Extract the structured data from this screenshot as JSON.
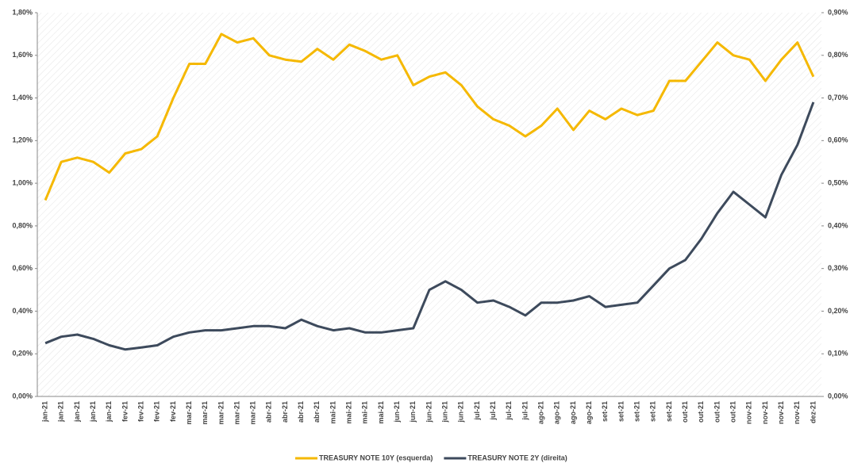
{
  "chart_data": {
    "type": "line",
    "categories": [
      "jan-21",
      "jan-21",
      "jan-21",
      "jan-21",
      "jan-21",
      "fev-21",
      "fev-21",
      "fev-21",
      "fev-21",
      "mar-21",
      "mar-21",
      "mar-21",
      "mar-21",
      "mar-21",
      "abr-21",
      "abr-21",
      "abr-21",
      "abr-21",
      "mai-21",
      "mai-21",
      "mai-21",
      "mai-21",
      "jun-21",
      "jun-21",
      "jun-21",
      "jun-21",
      "jun-21",
      "jul-21",
      "jul-21",
      "jul-21",
      "jul-21",
      "ago-21",
      "ago-21",
      "ago-21",
      "ago-21",
      "set-21",
      "set-21",
      "set-21",
      "set-21",
      "set-21",
      "out-21",
      "out-21",
      "out-21",
      "out-21",
      "nov-21",
      "nov-21",
      "nov-21",
      "nov-21",
      "dez-21"
    ],
    "series": [
      {
        "name": "TREASURY NOTE 10Y (esquerda)",
        "color": "#f5b800",
        "axis": "y",
        "values": [
          0.92,
          1.1,
          1.12,
          1.1,
          1.05,
          1.14,
          1.16,
          1.22,
          1.4,
          1.56,
          1.56,
          1.7,
          1.66,
          1.68,
          1.6,
          1.58,
          1.57,
          1.63,
          1.58,
          1.65,
          1.62,
          1.58,
          1.6,
          1.46,
          1.5,
          1.52,
          1.46,
          1.36,
          1.3,
          1.27,
          1.22,
          1.27,
          1.35,
          1.25,
          1.34,
          1.3,
          1.35,
          1.32,
          1.34,
          1.48,
          1.48,
          1.57,
          1.66,
          1.6,
          1.58,
          1.48,
          1.58,
          1.66,
          1.5
        ]
      },
      {
        "name": "TREASURY NOTE 2Y (direita)",
        "color": "#3d4a5c",
        "axis": "y2",
        "values": [
          0.125,
          0.14,
          0.145,
          0.135,
          0.12,
          0.11,
          0.115,
          0.12,
          0.14,
          0.15,
          0.155,
          0.155,
          0.16,
          0.165,
          0.165,
          0.16,
          0.18,
          0.165,
          0.155,
          0.16,
          0.15,
          0.15,
          0.155,
          0.16,
          0.25,
          0.27,
          0.25,
          0.22,
          0.225,
          0.21,
          0.19,
          0.22,
          0.22,
          0.225,
          0.235,
          0.21,
          0.215,
          0.22,
          0.26,
          0.3,
          0.32,
          0.37,
          0.43,
          0.48,
          0.45,
          0.42,
          0.52,
          0.59,
          0.69
        ]
      }
    ],
    "ylim": [
      0,
      1.8
    ],
    "yticks": [
      {
        "value": 0,
        "label": "0,00%"
      },
      {
        "value": 0.2,
        "label": "0,20%"
      },
      {
        "value": 0.4,
        "label": "0,40%"
      },
      {
        "value": 0.6,
        "label": "0,60%"
      },
      {
        "value": 0.8,
        "label": "0,80%"
      },
      {
        "value": 1.0,
        "label": "1,00%"
      },
      {
        "value": 1.2,
        "label": "1,20%"
      },
      {
        "value": 1.4,
        "label": "1,40%"
      },
      {
        "value": 1.6,
        "label": "1,60%"
      },
      {
        "value": 1.8,
        "label": "1,80%"
      }
    ],
    "y2lim": [
      0,
      0.9
    ],
    "y2ticks": [
      {
        "value": 0,
        "label": "0,00%"
      },
      {
        "value": 0.1,
        "label": "0,10%"
      },
      {
        "value": 0.2,
        "label": "0,20%"
      },
      {
        "value": 0.3,
        "label": "0,30%"
      },
      {
        "value": 0.4,
        "label": "0,40%"
      },
      {
        "value": 0.5,
        "label": "0,50%"
      },
      {
        "value": 0.6,
        "label": "0,60%"
      },
      {
        "value": 0.7,
        "label": "0,70%"
      },
      {
        "value": 0.8,
        "label": "0,80%"
      },
      {
        "value": 0.9,
        "label": "0,90%"
      }
    ],
    "legend": "bottom"
  }
}
